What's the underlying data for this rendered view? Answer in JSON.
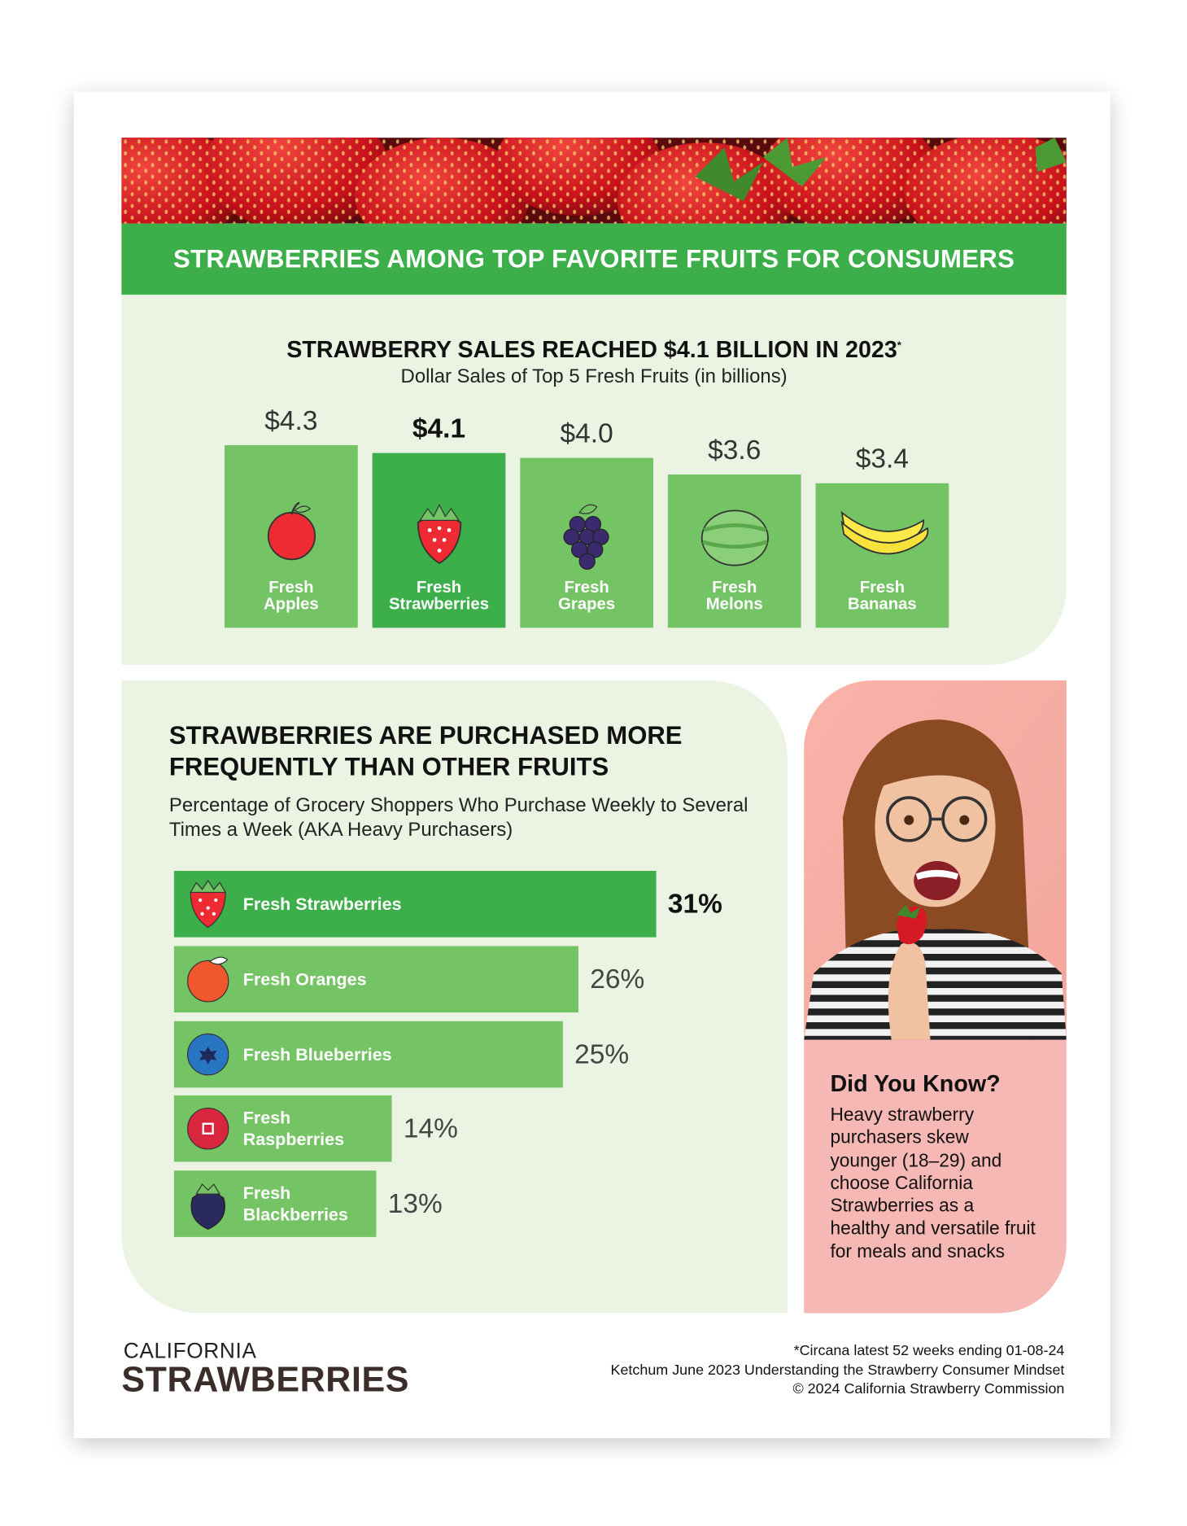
{
  "header": {
    "title": "STRAWBERRIES AMONG TOP FAVORITE FRUITS FOR CONSUMERS"
  },
  "chart_data": [
    {
      "type": "bar",
      "title": "STRAWBERRY SALES REACHED $4.1 BILLION IN 2023",
      "title_note": "*",
      "subtitle": "Dollar Sales of Top 5 Fresh Fruits (in billions)",
      "categories": [
        "Fresh Apples",
        "Fresh Strawberries",
        "Fresh Grapes",
        "Fresh Melons",
        "Fresh Bananas"
      ],
      "values": [
        4.3,
        4.1,
        4.0,
        3.6,
        3.4
      ],
      "value_labels": [
        "$4.3",
        "$4.1",
        "$4.0",
        "$3.6",
        "$3.4"
      ],
      "colors": [
        "#74c365",
        "#3cae4a",
        "#74c365",
        "#74c365",
        "#74c365"
      ],
      "highlight_index": 1
    },
    {
      "type": "hbar",
      "title": "STRAWBERRIES ARE PURCHASED MORE FREQUENTLY THAN OTHER FRUITS",
      "subtitle": "Percentage of Grocery Shoppers Who Purchase Weekly to Several Times a Week (AKA Heavy Purchasers)",
      "categories": [
        "Fresh Strawberries",
        "Fresh Oranges",
        "Fresh Blueberries",
        "Fresh Raspberries",
        "Fresh Blackberries"
      ],
      "values": [
        31,
        26,
        25,
        14,
        13
      ],
      "value_labels": [
        "31%",
        "26%",
        "25%",
        "14%",
        "13%"
      ],
      "colors": [
        "#3cae4a",
        "#74c365",
        "#74c365",
        "#74c365",
        "#74c365"
      ],
      "highlight_index": 0
    }
  ],
  "did_you_know": {
    "title": "Did You Know?",
    "body": "Heavy strawberry purchasers skew younger (18–29) and choose California Strawberries as a healthy and versatile fruit for meals and snacks"
  },
  "footer": {
    "logo_top": "CALIFORNIA",
    "logo_bottom": "STRAWBERRIES",
    "notes": [
      "*Circana latest 52 weeks ending 01-08-24",
      "Ketchum June 2023 Understanding the Strawberry Consumer Mindset",
      "© 2024 California Strawberry Commission"
    ]
  }
}
